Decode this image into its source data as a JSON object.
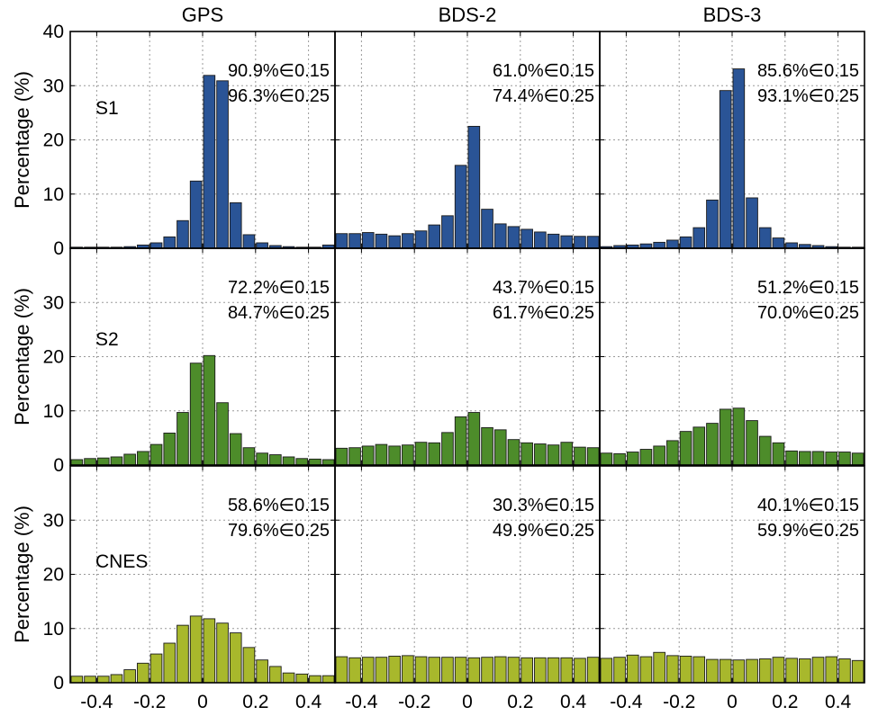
{
  "chart_data": {
    "type": "bar",
    "layout": "3x3 grid of histograms",
    "columns": [
      "GPS",
      "BDS-2",
      "BDS-3"
    ],
    "rows": [
      "S1",
      "S2",
      "CNES"
    ],
    "ylabel": "Percentage (%)",
    "xlabel": "",
    "xlim": [
      -0.5,
      0.5
    ],
    "ylim": [
      0,
      40
    ],
    "xticks": [
      "-0.4",
      "-0.2",
      "0",
      "0.2",
      "0.4"
    ],
    "yticks": [
      "0",
      "10",
      "20",
      "30",
      "40"
    ],
    "grid": true,
    "bin_centers": [
      -0.475,
      -0.425,
      -0.375,
      -0.325,
      -0.275,
      -0.225,
      -0.175,
      -0.125,
      -0.075,
      -0.025,
      0.025,
      0.075,
      0.125,
      0.175,
      0.225,
      0.275,
      0.325,
      0.375,
      0.425,
      0.475
    ],
    "row_colors": {
      "S1": "#2a5496",
      "S2": "#4d8c2a",
      "CNES": "#a8b82c"
    },
    "panels": [
      {
        "row": "S1",
        "col": "GPS",
        "annotation": [
          "90.9%∈0.15",
          "96.3%∈0.25"
        ],
        "values": [
          0.2,
          0.2,
          0.2,
          0.2,
          0.3,
          0.6,
          1.0,
          2.1,
          5.1,
          12.4,
          31.9,
          30.9,
          8.4,
          2.5,
          1.0,
          0.5,
          0.3,
          0.2,
          0.2,
          0.6
        ]
      },
      {
        "row": "S1",
        "col": "BDS-2",
        "annotation": [
          "61.0%∈0.15",
          "74.4%∈0.25"
        ],
        "values": [
          2.7,
          2.7,
          2.9,
          2.6,
          2.3,
          2.7,
          3.2,
          4.3,
          6.0,
          15.3,
          22.5,
          7.2,
          4.5,
          4.0,
          3.5,
          3.0,
          2.6,
          2.3,
          2.2,
          2.2
        ]
      },
      {
        "row": "S1",
        "col": "BDS-3",
        "annotation": [
          "85.6%∈0.15",
          "93.1%∈0.25"
        ],
        "values": [
          0.3,
          0.5,
          0.6,
          0.8,
          1.1,
          1.5,
          2.1,
          3.8,
          8.9,
          29.1,
          33.1,
          9.3,
          3.8,
          1.9,
          1.0,
          0.7,
          0.5,
          0.3,
          0.2,
          0.2
        ]
      },
      {
        "row": "S2",
        "col": "GPS",
        "annotation": [
          "72.2%∈0.15",
          "84.7%∈0.25"
        ],
        "values": [
          1.0,
          1.2,
          1.3,
          1.5,
          2.0,
          2.5,
          3.8,
          5.9,
          9.7,
          18.8,
          20.2,
          11.5,
          5.8,
          3.2,
          2.2,
          1.9,
          1.5,
          1.2,
          1.1,
          1.0
        ]
      },
      {
        "row": "S2",
        "col": "BDS-2",
        "annotation": [
          "43.7%∈0.15",
          "61.7%∈0.25"
        ],
        "values": [
          3.1,
          3.2,
          3.5,
          3.8,
          3.5,
          3.7,
          4.2,
          4.1,
          6.0,
          8.9,
          9.7,
          6.9,
          6.5,
          4.7,
          4.1,
          3.9,
          3.7,
          4.2,
          3.3,
          3.2
        ]
      },
      {
        "row": "S2",
        "col": "BDS-3",
        "annotation": [
          "51.2%∈0.15",
          "70.0%∈0.25"
        ],
        "values": [
          2.2,
          2.1,
          2.4,
          2.9,
          3.5,
          4.5,
          6.2,
          7.0,
          7.7,
          10.3,
          10.5,
          8.2,
          5.3,
          4.1,
          2.6,
          2.5,
          2.5,
          2.4,
          2.4,
          2.2
        ]
      },
      {
        "row": "CNES",
        "col": "GPS",
        "annotation": [
          "58.6%∈0.15",
          "79.6%∈0.25"
        ],
        "values": [
          1.2,
          1.2,
          1.2,
          1.5,
          2.4,
          3.6,
          5.3,
          7.3,
          10.6,
          12.3,
          11.8,
          11.0,
          9.2,
          6.5,
          4.2,
          3.0,
          1.8,
          1.6,
          1.3,
          1.3
        ]
      },
      {
        "row": "CNES",
        "col": "BDS-2",
        "annotation": [
          "30.3%∈0.15",
          "49.9%∈0.25"
        ],
        "values": [
          4.8,
          4.6,
          4.7,
          4.7,
          4.9,
          5.0,
          4.8,
          4.7,
          4.7,
          4.7,
          4.6,
          4.7,
          4.8,
          4.7,
          4.6,
          4.6,
          4.6,
          4.6,
          4.5,
          4.7
        ]
      },
      {
        "row": "CNES",
        "col": "BDS-3",
        "annotation": [
          "40.1%∈0.15",
          "59.9%∈0.25"
        ],
        "values": [
          4.5,
          4.7,
          5.1,
          4.8,
          5.6,
          5.0,
          4.9,
          4.8,
          4.3,
          4.3,
          4.2,
          4.3,
          4.4,
          4.7,
          4.5,
          4.4,
          4.7,
          4.8,
          4.4,
          4.1
        ]
      }
    ]
  }
}
